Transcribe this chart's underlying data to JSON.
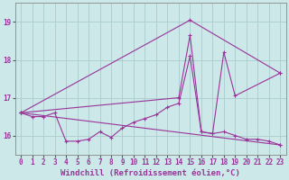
{
  "background_color": "#cce8e8",
  "grid_color": "#aacccc",
  "line_color": "#993399",
  "title": "",
  "xlabel": "Windchill (Refroidissement éolien,°C)",
  "xlabel_fontsize": 6.5,
  "xtick_labels": [
    "0",
    "1",
    "2",
    "3",
    "4",
    "5",
    "6",
    "7",
    "8",
    "9",
    "10",
    "11",
    "12",
    "13",
    "14",
    "15",
    "16",
    "17",
    "18",
    "19",
    "20",
    "21",
    "22",
    "23"
  ],
  "ytick_labels": [
    "16",
    "17",
    "18",
    "19"
  ],
  "ylim": [
    15.5,
    19.5
  ],
  "xlim": [
    -0.5,
    23.5
  ],
  "series1_x": [
    0,
    1,
    2,
    3,
    4,
    5,
    6,
    7,
    8,
    9,
    10,
    11,
    12,
    13,
    14,
    15,
    16,
    17,
    18,
    19,
    20,
    21,
    22,
    23
  ],
  "series1_y": [
    16.6,
    16.5,
    16.5,
    16.6,
    15.85,
    15.85,
    15.9,
    16.1,
    15.95,
    16.2,
    16.35,
    16.45,
    16.55,
    16.75,
    16.85,
    18.1,
    16.1,
    16.05,
    16.1,
    16.0,
    15.9,
    15.9,
    15.85,
    15.75
  ],
  "series2_x": [
    0,
    23
  ],
  "series2_y": [
    16.6,
    15.75
  ],
  "series3_x": [
    0,
    15,
    23
  ],
  "series3_y": [
    16.6,
    19.05,
    17.65
  ],
  "series4_x": [
    0,
    14,
    15,
    16,
    17,
    18,
    19,
    23
  ],
  "series4_y": [
    16.6,
    17.0,
    18.65,
    16.1,
    16.05,
    18.2,
    17.05,
    17.65
  ],
  "tick_fontsize": 5.5,
  "figsize": [
    3.2,
    2.0
  ],
  "dpi": 100
}
